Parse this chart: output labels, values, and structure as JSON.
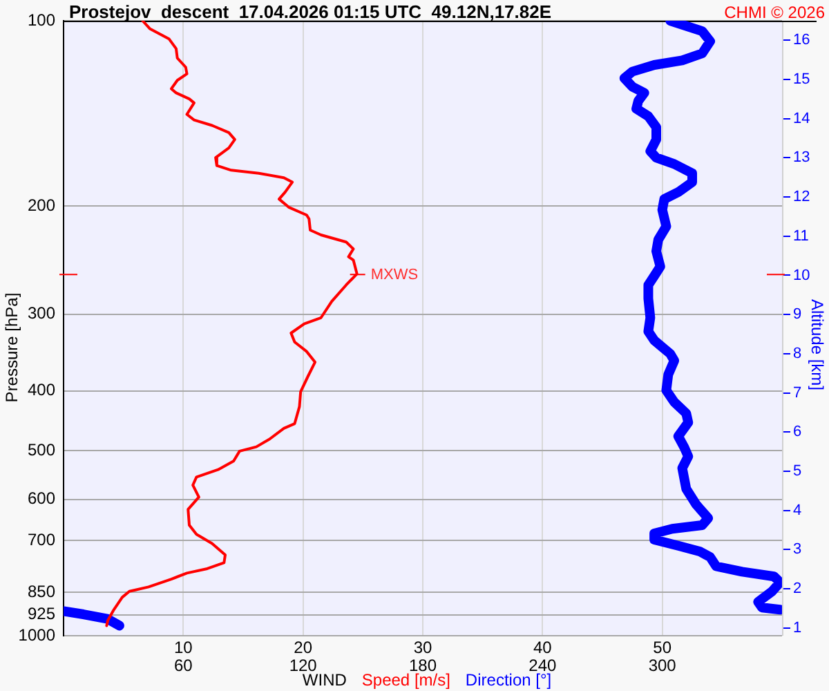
{
  "chart_data": {
    "type": "line",
    "title": "Prostejov  descent  17.04.2026 01:15 UTC  49.12N,17.82E",
    "xlabel": "WIND",
    "ylabel": "Pressure [hPa]",
    "y2label": "Altitude [km]",
    "annotations": [
      {
        "text": "MXWS",
        "x": 24.5,
        "y": 258
      },
      "CHMI © 2026"
    ],
    "series": [
      {
        "name": "Speed [m/s]",
        "color": "#ff0000",
        "x": [
          6.6,
          7.2,
          8.8,
          9.4,
          9.5,
          10.2,
          10.3,
          9.5,
          9.0,
          9.4,
          10.5,
          10.9,
          10.3,
          10.9,
          12.4,
          13.8,
          14.3,
          13.8,
          12.7,
          12.8,
          14.0,
          16.3,
          18.4,
          19.1,
          18.5,
          18.0,
          18.8,
          20.3,
          20.5,
          20.6,
          21.5,
          23.6,
          24.2,
          23.8,
          24.2,
          24.5,
          23.6,
          22.4,
          21.5,
          20.1,
          19.0,
          19.3,
          20.3,
          21.0,
          20.4,
          19.8,
          19.7,
          19.3,
          18.4,
          17.2,
          16.1,
          14.7,
          14.2,
          12.9,
          11.1,
          10.8,
          11.3,
          10.4,
          10.5,
          11.1,
          12.4,
          13.5,
          13.4,
          12.0,
          10.3,
          9.0,
          7.1,
          5.5,
          4.9,
          4.2,
          3.7,
          3.6
        ],
        "values": [
          100,
          103,
          107,
          111,
          115,
          119,
          122,
          125,
          129,
          131,
          134,
          136,
          142,
          145,
          148,
          152,
          156,
          161,
          167,
          172,
          175,
          177,
          180,
          183,
          190,
          195,
          201,
          207,
          210,
          219,
          223,
          229,
          235,
          242,
          245,
          258,
          269,
          286,
          304,
          311,
          322,
          333,
          345,
          359,
          379,
          401,
          424,
          452,
          460,
          479,
          493,
          501,
          520,
          537,
          552,
          569,
          595,
          623,
          661,
          684,
          708,
          739,
          761,
          778,
          791,
          809,
          833,
          847,
          866,
          907,
          944,
          963
        ]
      },
      {
        "name": "Direction [°]",
        "color": "#0000ff",
        "axis": "x2",
        "x": [
          304,
          312,
          320,
          324,
          320,
          310,
          296,
          285,
          281,
          285,
          291,
          288,
          287,
          293,
          297,
          297,
          294,
          297,
          306,
          315,
          315,
          308,
          301,
          300,
          302,
          298,
          297,
          299,
          296,
          293,
          293,
          294,
          293,
          296,
          304,
          306,
          303,
          302,
          306,
          312,
          313,
          308,
          311,
          313,
          310,
          312,
          317,
          323,
          320,
          305,
          296,
          296,
          308,
          319,
          324,
          327,
          340,
          356,
          359,
          355,
          348,
          350,
          359,
          null,
          0,
          10,
          22,
          28
        ],
        "values": [
          100,
          102,
          104,
          108,
          113,
          116,
          118,
          121,
          124,
          128,
          131,
          135,
          139,
          143,
          149,
          156,
          163,
          167,
          171,
          177,
          183,
          190,
          195,
          203,
          216,
          227,
          237,
          251,
          260,
          269,
          283,
          304,
          320,
          331,
          348,
          357,
          376,
          399,
          417,
          435,
          450,
          474,
          494,
          511,
          534,
          577,
          612,
          644,
          661,
          670,
          682,
          698,
          714,
          730,
          745,
          771,
          787,
          801,
          819,
          847,
          881,
          900,
          907,
          null,
          912,
          923,
          939,
          963
        ]
      }
    ],
    "xlim": [
      0,
      60
    ],
    "xticks": [
      10,
      20,
      30,
      40,
      50
    ],
    "x2lim": [
      0,
      360
    ],
    "x2ticks": [
      60,
      120,
      180,
      240,
      300
    ],
    "ylim": [
      1000,
      100
    ],
    "yticks": [
      100,
      200,
      300,
      400,
      500,
      600,
      700,
      850,
      925,
      1000
    ],
    "y2lim": [
      0.8,
      16.5
    ],
    "y2ticks": [
      1,
      2,
      3,
      4,
      5,
      6,
      7,
      8,
      9,
      10,
      11,
      12,
      13,
      14,
      15,
      16
    ],
    "log": "y",
    "grid": true,
    "legend": "bottom",
    "marker": "none"
  }
}
